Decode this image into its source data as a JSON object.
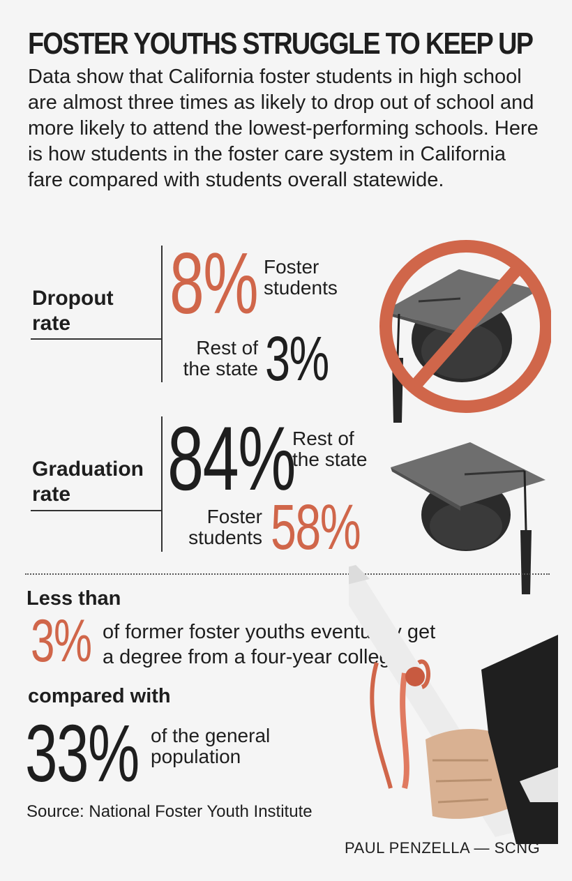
{
  "title": "FOSTER YOUTHS STRUGGLE TO KEEP UP",
  "intro": "Data show that California foster students in high school are almost three times as likely to drop out of school and more likely to attend the lowest-performing schools. Here is how students in the foster care system in California fare compared with students overall statewide.",
  "dropout": {
    "label_line1": "Dropout",
    "label_line2": "rate",
    "foster_value": "8%",
    "foster_label_line1": "Foster",
    "foster_label_line2": "students",
    "rest_label_line1": "Rest of",
    "rest_label_line2": "the state",
    "rest_value": "3%"
  },
  "graduation": {
    "label_line1": "Graduation",
    "label_line2": "rate",
    "rest_value": "84%",
    "rest_label_line1": "Rest of",
    "rest_label_line2": "the state",
    "foster_label_line1": "Foster",
    "foster_label_line2": "students",
    "foster_value": "58%"
  },
  "college": {
    "less_than": "Less than",
    "foster_value": "3%",
    "foster_desc_line1": "of former foster youths eventually get",
    "foster_desc_line2": "a degree from a four-year college.",
    "compared_with": "compared with",
    "general_value": "33%",
    "general_desc_line1": "of the general",
    "general_desc_line2": "population"
  },
  "source": "Source: National Foster Youth Institute",
  "credit": "PAUL PENZELLA — SCNG",
  "colors": {
    "accent": "#d0664a",
    "text": "#1e1e1e",
    "background": "#f5f5f5"
  }
}
